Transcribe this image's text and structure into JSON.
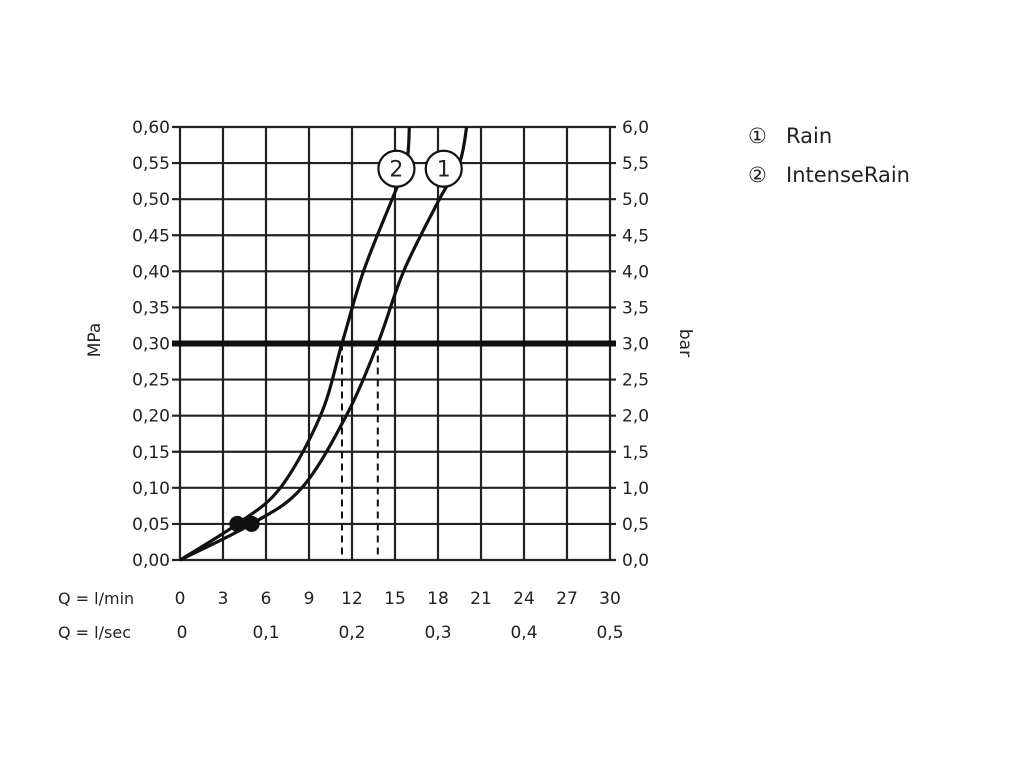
{
  "chart_data": {
    "type": "line",
    "title": "",
    "xlabel_min": "Q = l/min",
    "xlabel_sec": "Q = l/sec",
    "ylabel_left": "MPa",
    "ylabel_right": "bar",
    "xlim": [
      0,
      30
    ],
    "ylim": [
      0,
      0.6
    ],
    "grid": true,
    "x_ticks": [
      "0",
      "3",
      "6",
      "9",
      "12",
      "15",
      "18",
      "21",
      "24",
      "27",
      "30"
    ],
    "x_ticks_values": [
      0,
      3,
      6,
      9,
      12,
      15,
      18,
      21,
      24,
      27,
      30
    ],
    "x_sec_ticks": [
      {
        "v": 0,
        "label": "0"
      },
      {
        "v": 6,
        "label": "0,1"
      },
      {
        "v": 12,
        "label": "0,2"
      },
      {
        "v": 18,
        "label": "0,3"
      },
      {
        "v": 24,
        "label": "0,4"
      },
      {
        "v": 30,
        "label": "0,5"
      }
    ],
    "y_left_ticks": [
      "0,00",
      "0,05",
      "0,10",
      "0,15",
      "0,20",
      "0,25",
      "0,30",
      "0,35",
      "0,40",
      "0,45",
      "0,50",
      "0,55",
      "0,60"
    ],
    "y_right_ticks": [
      "0,0",
      "0,5",
      "1,0",
      "1,5",
      "2,0",
      "2,5",
      "3,0",
      "3,5",
      "4,0",
      "4,5",
      "5,0",
      "5,5",
      "6,0"
    ],
    "reference_line": {
      "y": 0.3
    },
    "series": [
      {
        "name": "Rain",
        "marker": "1",
        "marker_at": [
          18.4,
          0.52
        ],
        "dot": [
          5,
          0.05
        ],
        "flow_at_ref": 13.8,
        "x": [
          0,
          5,
          8.5,
          11.6,
          13.8,
          15.6,
          18.1,
          19.5,
          20.0
        ],
        "y": [
          0,
          0.05,
          0.1,
          0.2,
          0.3,
          0.4,
          0.5,
          0.55,
          0.6
        ]
      },
      {
        "name": "IntenseRain",
        "marker": "2",
        "marker_at": [
          15.1,
          0.52
        ],
        "dot": [
          4,
          0.05
        ],
        "flow_at_ref": 11.3,
        "x": [
          0,
          4,
          7.0,
          9.8,
          11.3,
          12.8,
          14.8,
          15.8,
          16.0
        ],
        "y": [
          0,
          0.05,
          0.1,
          0.2,
          0.3,
          0.4,
          0.5,
          0.55,
          0.6
        ]
      }
    ],
    "legend": [
      {
        "symbol": "①",
        "label": "Rain"
      },
      {
        "symbol": "②",
        "label": "IntenseRain"
      }
    ],
    "legend_position": "top-right"
  }
}
